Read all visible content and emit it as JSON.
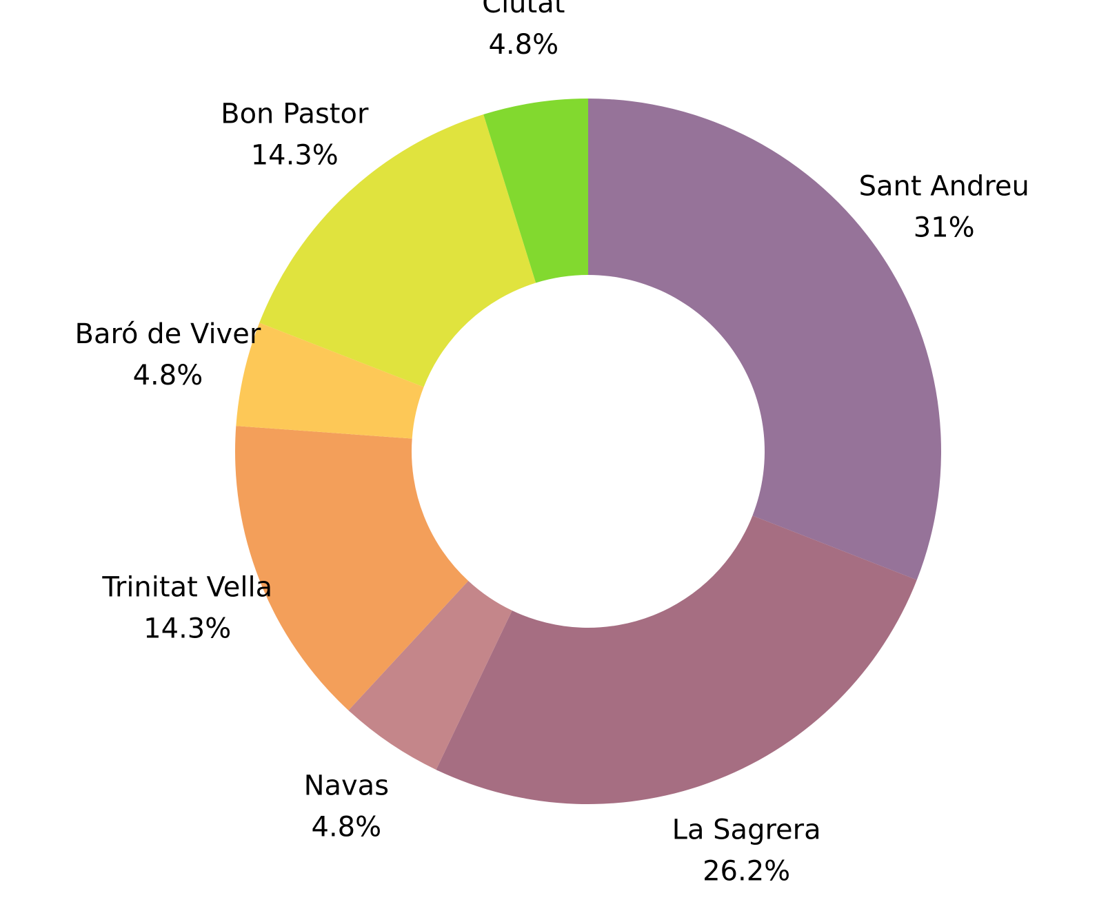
{
  "chart_data": {
    "type": "donut",
    "categories": [
      "Sant Andreu",
      "La Sagrera",
      "Navas",
      "Trinitat Vella",
      "Baró de Viver",
      "Bon Pastor",
      "Ciutat"
    ],
    "values": [
      31,
      26.2,
      4.8,
      14.3,
      4.8,
      14.3,
      4.8
    ],
    "value_labels": [
      "31%",
      "26.2%",
      "4.8%",
      "14.3%",
      "4.8%",
      "14.3%",
      "4.8%"
    ],
    "colors": [
      "#967399",
      "#a66e82",
      "#c4868a",
      "#f39f5a",
      "#fdc857",
      "#e0e33e",
      "#82d92f"
    ]
  }
}
